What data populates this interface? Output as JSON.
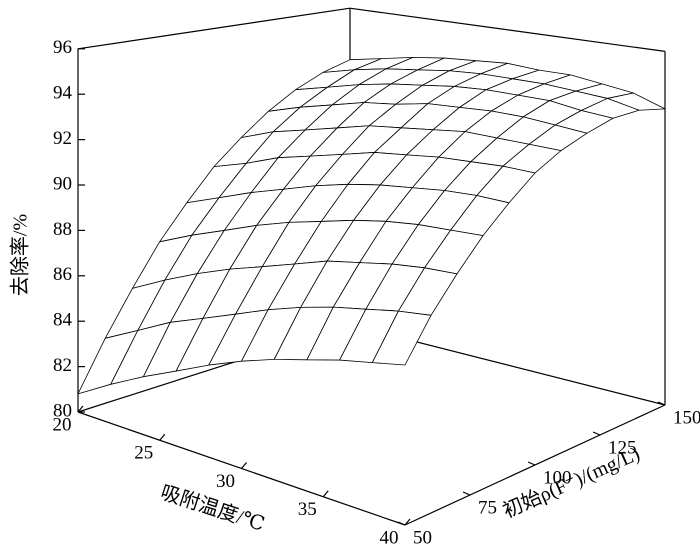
{
  "chart_data": {
    "type": "surface",
    "xlabel": "吸附温度/℃",
    "ylabel": "初始ρ(F⁻)/(mg/L)",
    "zlabel": "去除率/%",
    "x": [
      20,
      22,
      24,
      26,
      28,
      30,
      32,
      34,
      36,
      38,
      40
    ],
    "y": [
      50,
      60,
      70,
      80,
      90,
      100,
      110,
      120,
      130,
      140,
      150
    ],
    "z": [
      [
        80.8,
        81.7,
        82.5,
        83.2,
        83.9,
        84.5,
        85.0,
        85.4,
        85.8,
        86.1,
        86.4
      ],
      [
        82.9,
        83.7,
        84.5,
        85.1,
        85.7,
        86.3,
        86.8,
        87.2,
        87.5,
        87.8,
        88.0
      ],
      [
        84.8,
        85.6,
        86.3,
        86.9,
        87.4,
        87.9,
        88.4,
        88.7,
        89.0,
        89.2,
        89.3
      ],
      [
        86.6,
        87.3,
        87.9,
        88.5,
        89.0,
        89.4,
        89.8,
        90.1,
        90.3,
        90.4,
        90.5
      ],
      [
        88.1,
        88.7,
        89.3,
        89.8,
        90.3,
        90.7,
        91.0,
        91.2,
        91.4,
        91.5,
        91.5
      ],
      [
        89.5,
        90.0,
        90.6,
        91.0,
        91.4,
        91.8,
        92.0,
        92.2,
        92.3,
        92.4,
        92.4
      ],
      [
        90.6,
        91.2,
        91.6,
        92.0,
        92.4,
        92.6,
        92.8,
        93.0,
        93.0,
        93.0,
        93.0
      ],
      [
        91.6,
        92.1,
        92.5,
        92.9,
        93.1,
        93.4,
        93.5,
        93.6,
        93.6,
        93.5,
        93.4
      ],
      [
        92.4,
        92.8,
        93.2,
        93.5,
        93.7,
        93.9,
        94.0,
        94.0,
        94.0,
        93.8,
        93.7
      ],
      [
        93.0,
        93.4,
        93.7,
        93.9,
        94.1,
        94.2,
        94.2,
        94.2,
        94.1,
        94.0,
        93.7
      ],
      [
        93.4,
        93.7,
        94.0,
        94.2,
        94.3,
        94.4,
        94.3,
        94.3,
        94.1,
        93.9,
        93.4
      ]
    ],
    "xlim": [
      20,
      40
    ],
    "ylim": [
      50,
      150
    ],
    "zlim": [
      80,
      96
    ],
    "xticks": [
      20,
      25,
      30,
      35,
      40
    ],
    "yticks": [
      50,
      75,
      100,
      125,
      150
    ],
    "zticks": [
      80,
      82,
      84,
      86,
      88,
      90,
      92,
      94,
      96
    ],
    "color": "#000000",
    "fill": "#ffffff"
  }
}
